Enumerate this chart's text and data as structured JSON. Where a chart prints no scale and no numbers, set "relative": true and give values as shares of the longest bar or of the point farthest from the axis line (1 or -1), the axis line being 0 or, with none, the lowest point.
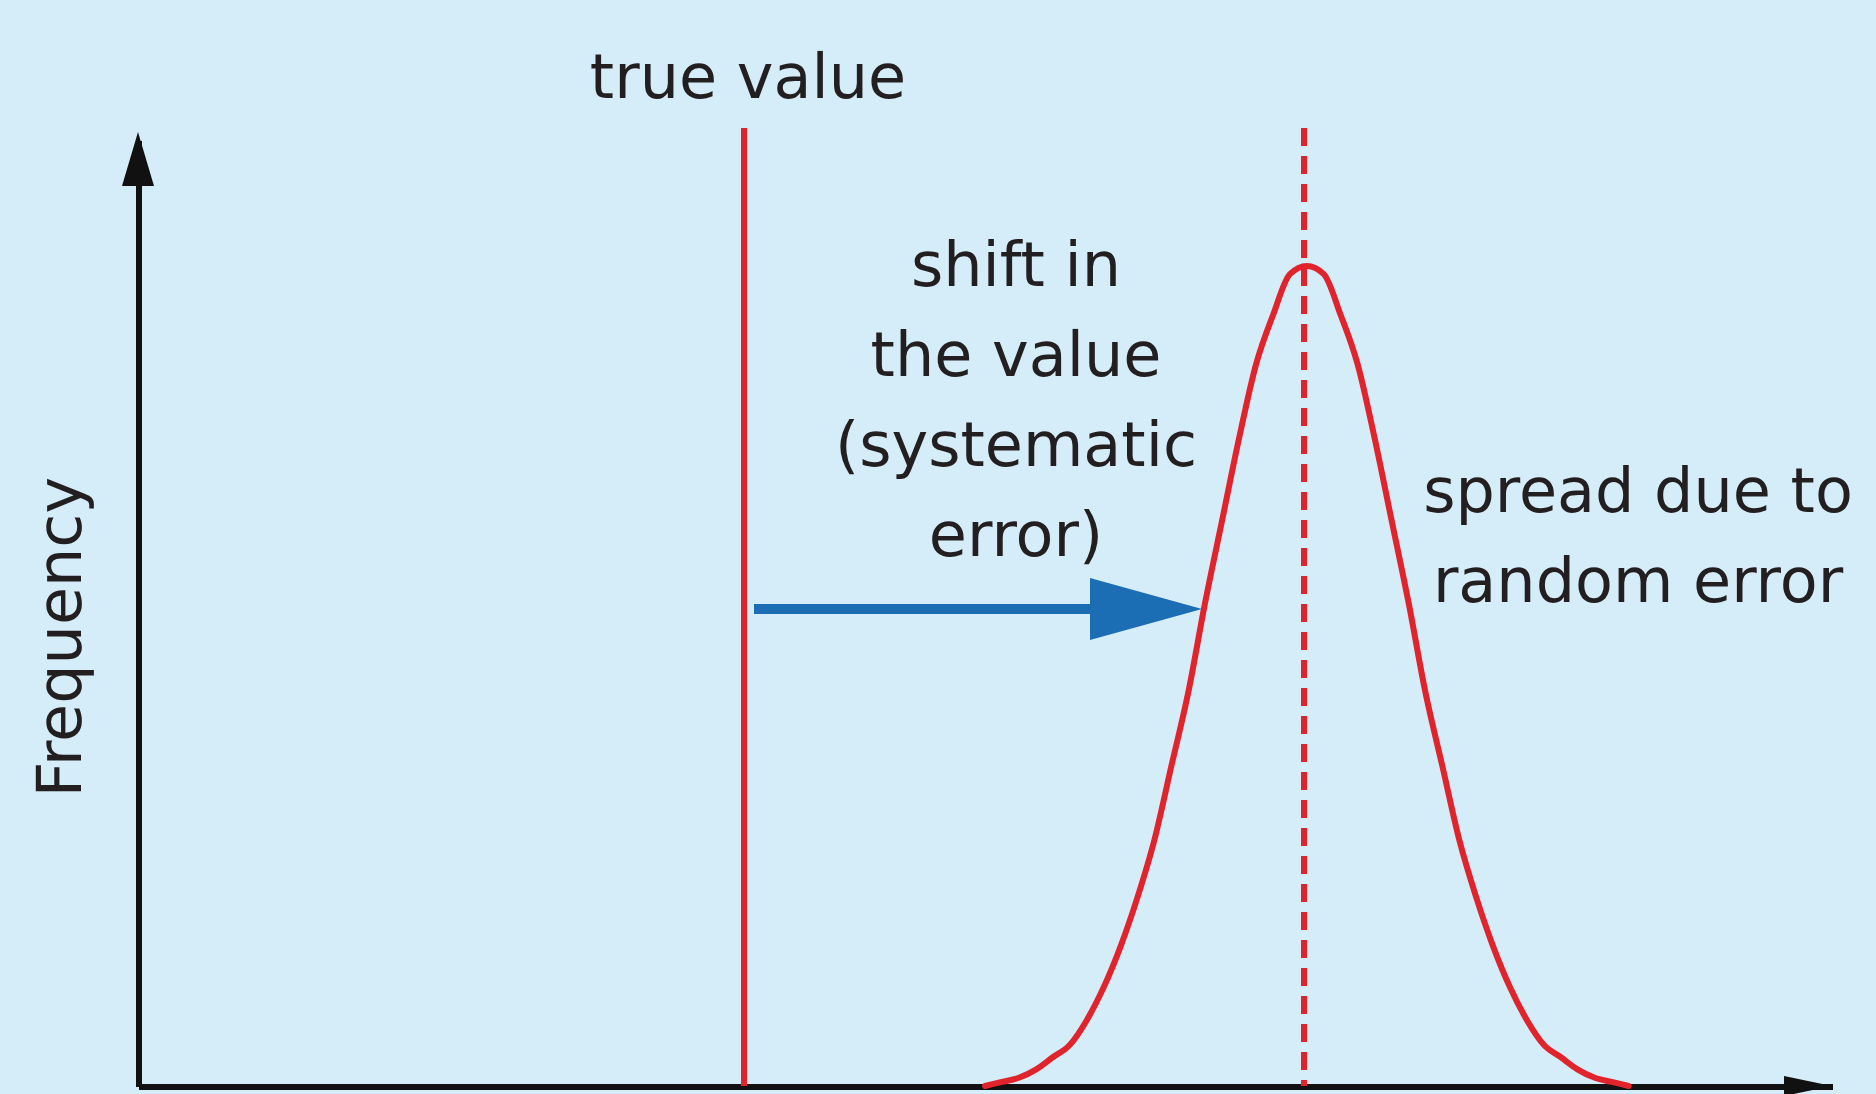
{
  "chart_data": {
    "type": "line",
    "ylabel": "Frequency",
    "relative": true,
    "categories": [
      null,
      null,
      null,
      null,
      null,
      null,
      null,
      null,
      null,
      null,
      null,
      null,
      null,
      null,
      null,
      null,
      null,
      null,
      null,
      null,
      null,
      null,
      null,
      null,
      null,
      null,
      null,
      null,
      null,
      null,
      null,
      null,
      null,
      null,
      null,
      null,
      null,
      null,
      null,
      null,
      null,
      null,
      null,
      null,
      null,
      null,
      null,
      null,
      null,
      null,
      null,
      null,
      null,
      null,
      null,
      null,
      null,
      null,
      null,
      null,
      null,
      null,
      null,
      null,
      null,
      null,
      null,
      null,
      null,
      null,
      null,
      null,
      null,
      null,
      null,
      null,
      null,
      null,
      null,
      null,
      null,
      null,
      null,
      null,
      null,
      null,
      null,
      null,
      null,
      null,
      null,
      null,
      null,
      null,
      null,
      null,
      null,
      null,
      null,
      null,
      null
    ],
    "series": [
      {
        "color": "#e1232c",
        "values": [
          null,
          null,
          null,
          null,
          null,
          null,
          null,
          null,
          null,
          null,
          null,
          null,
          null,
          null,
          null,
          null,
          null,
          null,
          null,
          null,
          null,
          null,
          null,
          null,
          null,
          null,
          null,
          null,
          null,
          null,
          null,
          null,
          null,
          null,
          null,
          null,
          null,
          null,
          null,
          null,
          null,
          null,
          null,
          null,
          null,
          null,
          null,
          null,
          null,
          null,
          0,
          0.005,
          0.01,
          0.02,
          0.035,
          0.05,
          0.08,
          0.12,
          0.17,
          0.23,
          0.3,
          0.39,
          0.48,
          0.59,
          0.69,
          0.79,
          0.88,
          0.94,
          0.99,
          1,
          0.99,
          0.94,
          0.88,
          0.79,
          0.69,
          0.59,
          0.48,
          0.39,
          0.3,
          0.23,
          0.17,
          0.12,
          0.08,
          0.05,
          0.035,
          0.02,
          0.01,
          0.005,
          0,
          null,
          null,
          null,
          null,
          null,
          null,
          null,
          null,
          null,
          null,
          null,
          null
        ]
      }
    ],
    "annotations": [
      "true value",
      "shift in the value (systematic error)",
      "spread due to random error"
    ]
  }
}
